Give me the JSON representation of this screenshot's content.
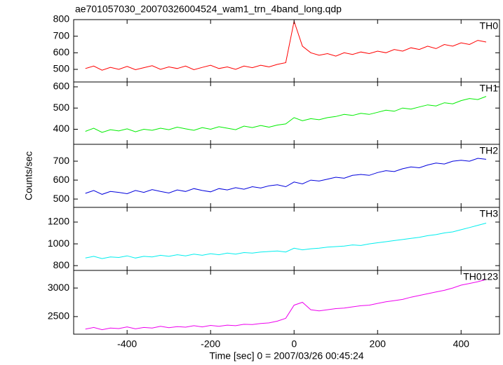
{
  "chart_data": [
    {
      "type": "line",
      "title": "ae701057030_20070326004524_wam1_trn_4band_long.qdp",
      "x": [
        -500,
        -480,
        -460,
        -440,
        -420,
        -400,
        -380,
        -360,
        -340,
        -320,
        -300,
        -280,
        -260,
        -240,
        -220,
        -200,
        -180,
        -160,
        -140,
        -120,
        -100,
        -80,
        -60,
        -40,
        -20,
        0,
        20,
        40,
        60,
        80,
        100,
        120,
        140,
        160,
        180,
        200,
        220,
        240,
        260,
        280,
        300,
        320,
        340,
        360,
        380,
        400,
        420,
        440,
        460
      ],
      "series": [
        {
          "name": "TH0",
          "color": "#ff0000",
          "values": [
            505,
            520,
            495,
            512,
            500,
            518,
            498,
            510,
            522,
            500,
            515,
            505,
            520,
            498,
            512,
            525,
            505,
            515,
            500,
            520,
            510,
            525,
            515,
            530,
            540,
            790,
            640,
            600,
            585,
            595,
            580,
            600,
            590,
            605,
            595,
            610,
            600,
            620,
            610,
            630,
            620,
            640,
            625,
            650,
            640,
            660,
            650,
            675,
            665
          ]
        }
      ],
      "xlim": [
        -528,
        492
      ],
      "xticks": [
        -400,
        -200,
        0,
        200,
        400
      ],
      "ylim": [
        424,
        800
      ],
      "yticks": [
        500,
        600,
        700,
        800
      ]
    },
    {
      "type": "line",
      "x": [
        -500,
        -480,
        -460,
        -440,
        -420,
        -400,
        -380,
        -360,
        -340,
        -320,
        -300,
        -280,
        -260,
        -240,
        -220,
        -200,
        -180,
        -160,
        -140,
        -120,
        -100,
        -80,
        -60,
        -40,
        -20,
        0,
        20,
        40,
        60,
        80,
        100,
        120,
        140,
        160,
        180,
        200,
        220,
        240,
        260,
        280,
        300,
        320,
        340,
        360,
        380,
        400,
        420,
        440,
        460
      ],
      "series": [
        {
          "name": "TH1",
          "color": "#00ee00",
          "values": [
            390,
            405,
            385,
            398,
            392,
            402,
            388,
            400,
            395,
            405,
            398,
            410,
            402,
            395,
            408,
            400,
            412,
            405,
            398,
            415,
            408,
            418,
            410,
            420,
            425,
            455,
            440,
            450,
            445,
            455,
            460,
            470,
            465,
            475,
            470,
            480,
            490,
            485,
            500,
            495,
            505,
            515,
            510,
            525,
            520,
            535,
            545,
            540,
            555
          ]
        }
      ],
      "xlim": [
        -528,
        492
      ],
      "xticks": [
        -400,
        -200,
        0,
        200,
        400
      ],
      "ylim": [
        329,
        623
      ],
      "yticks": [
        400,
        500,
        600
      ]
    },
    {
      "type": "line",
      "ylabel": "Counts/sec",
      "x": [
        -500,
        -480,
        -460,
        -440,
        -420,
        -400,
        -380,
        -360,
        -340,
        -320,
        -300,
        -280,
        -260,
        -240,
        -220,
        -200,
        -180,
        -160,
        -140,
        -120,
        -100,
        -80,
        -60,
        -40,
        -20,
        0,
        20,
        40,
        60,
        80,
        100,
        120,
        140,
        160,
        180,
        200,
        220,
        240,
        260,
        280,
        300,
        320,
        340,
        360,
        380,
        400,
        420,
        440,
        460
      ],
      "series": [
        {
          "name": "TH2",
          "color": "#0000dd",
          "values": [
            530,
            545,
            525,
            540,
            535,
            528,
            545,
            535,
            550,
            540,
            532,
            548,
            540,
            555,
            545,
            538,
            555,
            548,
            560,
            552,
            565,
            558,
            570,
            575,
            565,
            590,
            580,
            600,
            595,
            605,
            615,
            610,
            625,
            630,
            625,
            640,
            650,
            645,
            660,
            670,
            665,
            680,
            690,
            685,
            700,
            705,
            700,
            715,
            710
          ]
        }
      ],
      "xlim": [
        -528,
        492
      ],
      "xticks": [
        -400,
        -200,
        0,
        200,
        400
      ],
      "ylim": [
        456,
        789
      ],
      "yticks": [
        500,
        600,
        700
      ]
    },
    {
      "type": "line",
      "x": [
        -500,
        -480,
        -460,
        -440,
        -420,
        -400,
        -380,
        -360,
        -340,
        -320,
        -300,
        -280,
        -260,
        -240,
        -220,
        -200,
        -180,
        -160,
        -140,
        -120,
        -100,
        -80,
        -60,
        -40,
        -20,
        0,
        20,
        40,
        60,
        80,
        100,
        120,
        140,
        160,
        180,
        200,
        220,
        240,
        260,
        280,
        300,
        320,
        340,
        360,
        380,
        400,
        420,
        440,
        460
      ],
      "series": [
        {
          "name": "TH3",
          "color": "#00eeee",
          "values": [
            870,
            885,
            865,
            880,
            875,
            890,
            870,
            885,
            880,
            895,
            885,
            900,
            890,
            905,
            895,
            910,
            900,
            915,
            905,
            920,
            915,
            925,
            930,
            935,
            925,
            960,
            945,
            955,
            960,
            970,
            975,
            980,
            990,
            985,
            1000,
            1010,
            1020,
            1030,
            1040,
            1050,
            1060,
            1075,
            1085,
            1100,
            1110,
            1130,
            1150,
            1170,
            1190
          ]
        }
      ],
      "xlim": [
        -528,
        492
      ],
      "xticks": [
        -400,
        -200,
        0,
        200,
        400
      ],
      "ylim": [
        756,
        1335
      ],
      "yticks": [
        800,
        1000,
        1200
      ]
    },
    {
      "type": "line",
      "xlabel": "Time [sec] 0 = 2007/03/26 00:45:24",
      "x": [
        -500,
        -480,
        -460,
        -440,
        -420,
        -400,
        -380,
        -360,
        -340,
        -320,
        -300,
        -280,
        -260,
        -240,
        -220,
        -200,
        -180,
        -160,
        -140,
        -120,
        -100,
        -80,
        -60,
        -40,
        -20,
        0,
        20,
        40,
        60,
        80,
        100,
        120,
        140,
        160,
        180,
        200,
        220,
        240,
        260,
        280,
        300,
        320,
        340,
        360,
        380,
        400,
        420,
        440,
        460
      ],
      "series": [
        {
          "name": "TH0123",
          "color": "#ee00ee",
          "values": [
            2280,
            2310,
            2270,
            2300,
            2290,
            2320,
            2285,
            2310,
            2300,
            2330,
            2305,
            2325,
            2315,
            2340,
            2320,
            2345,
            2330,
            2350,
            2340,
            2365,
            2360,
            2380,
            2390,
            2420,
            2470,
            2700,
            2750,
            2620,
            2600,
            2620,
            2640,
            2650,
            2670,
            2690,
            2700,
            2730,
            2760,
            2780,
            2800,
            2840,
            2870,
            2900,
            2930,
            2960,
            3000,
            3050,
            3080,
            3110,
            3150
          ]
        }
      ],
      "xlim": [
        -528,
        492
      ],
      "xticks": [
        -400,
        -200,
        0,
        200,
        400
      ],
      "ylim": [
        2192,
        3308
      ],
      "yticks": [
        2500,
        3000
      ]
    }
  ]
}
